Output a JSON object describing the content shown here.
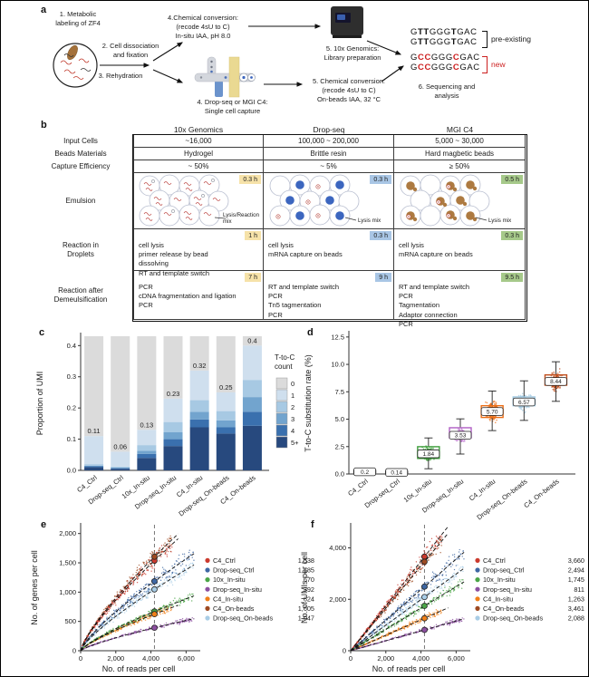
{
  "figure": {
    "panel_labels": {
      "a": "a",
      "b": "b",
      "c": "c",
      "d": "d",
      "e": "e",
      "f": "f"
    }
  },
  "panel_a": {
    "step1_lines": [
      "1. Metabolic",
      "labeling of ZF4"
    ],
    "step2_lines": [
      "2. Cell dissociation",
      "and fixation"
    ],
    "step3": "3. Rehydration",
    "step4_top_lines": [
      "4.Chemical conversion:",
      "(recode 4sU to C)",
      "In-situ IAA, pH 8.0"
    ],
    "step5_top_lines": [
      "5. 10x Genomics:",
      "Library preparation"
    ],
    "step4_bottom_lines": [
      "4. Drop-seq or MGI C4:",
      "Single cell capture"
    ],
    "step5_bottom_lines": [
      "5. Chemical conversion:",
      "(recode 4sU to C)",
      "On-beads IAA, 32 °C"
    ],
    "step6_lines": [
      "6. Sequencing and",
      "analysis"
    ],
    "seq_preexisting": {
      "segments": [
        {
          "text": "G",
          "bold": false,
          "color": "#111111"
        },
        {
          "text": "TT",
          "bold": true,
          "color": "#111111"
        },
        {
          "text": "GGG",
          "bold": false,
          "color": "#111111"
        },
        {
          "text": "T",
          "bold": true,
          "color": "#111111"
        },
        {
          "text": "GAC",
          "bold": false,
          "color": "#111111"
        }
      ],
      "label": "pre-existing",
      "label_color": "#111111"
    },
    "seq_new": {
      "segments": [
        {
          "text": "G",
          "bold": false,
          "color": "#111111"
        },
        {
          "text": "CC",
          "bold": true,
          "color": "#cc1f1f"
        },
        {
          "text": "GGG",
          "bold": false,
          "color": "#111111"
        },
        {
          "text": "C",
          "bold": true,
          "color": "#cc1f1f"
        },
        {
          "text": "GAC",
          "bold": false,
          "color": "#111111"
        }
      ],
      "label": "new",
      "label_color": "#cc1f1f"
    }
  },
  "panel_b": {
    "columns": [
      "10x Genomics",
      "Drop-seq",
      "MGI C4"
    ],
    "rows": [
      {
        "label": "Input Cells",
        "cells": [
          "~16,000",
          "100,000 ~ 200,000",
          "5,000 ~ 30,000"
        ]
      },
      {
        "label": "Beads Materials",
        "cells": [
          "Hydrogel",
          "Brittle resin",
          "Hard magbetic beads"
        ]
      },
      {
        "label": "Capture Efficiency",
        "cells": [
          "~ 50%",
          "~ 5%",
          "≥ 50%"
        ]
      }
    ],
    "emulsion": {
      "label": "Emulsion",
      "cols": [
        {
          "tag": "0.3 h",
          "tag_color": "#f6e2a9",
          "mix_label_lines": [
            "Lysis/Reaction",
            "mix"
          ],
          "bead": "none"
        },
        {
          "tag": "0.3 h",
          "tag_color": "#a9c6e5",
          "mix_label_lines": [
            "Lysis mix"
          ],
          "bead": "#3c66bf"
        },
        {
          "tag": "0.5 h",
          "tag_color": "#a6c98a",
          "mix_label_lines": [
            "Lysis mix"
          ],
          "bead": "#ad7a41"
        }
      ]
    },
    "reaction_droplets": {
      "label_lines": [
        "Reaction in",
        "Droplets"
      ],
      "cols": [
        {
          "tag": "1 h",
          "tag_color": "#f6e2a9",
          "lines": [
            "cell lysis",
            "primer release by bead dissolving",
            "RT and template switch"
          ]
        },
        {
          "tag": "0.3 h",
          "tag_color": "#a9c6e5",
          "lines": [
            "cell lysis",
            "mRNA capture on beads"
          ]
        },
        {
          "tag": "0.3 h",
          "tag_color": "#a6c98a",
          "lines": [
            "cell lysis",
            "mRNA capture on beads"
          ]
        }
      ]
    },
    "reaction_after": {
      "label_lines": [
        "Reaction after",
        "Demeulsification"
      ],
      "cols": [
        {
          "tag": "7 h",
          "tag_color": "#f6e2a9",
          "lines": [
            "PCR",
            "cDNA fragmentation and ligation",
            "PCR"
          ]
        },
        {
          "tag": "9 h",
          "tag_color": "#a9c6e5",
          "lines": [
            "RT and template switch",
            "PCR",
            "Tn5 tagmentation",
            "PCR"
          ]
        },
        {
          "tag": "9.5 h",
          "tag_color": "#a6c98a",
          "lines": [
            "RT and template switch",
            "PCR",
            "Tagmentation",
            "Adaptor connection",
            "PCR"
          ]
        }
      ]
    }
  },
  "chart_data": [
    {
      "id": "c",
      "type": "stacked_bar",
      "ylabel": "Proportion of UMI",
      "categories": [
        "C4_Ctrl",
        "Drop-seq_Ctrl",
        "10x_In-situ",
        "Drop-seq_In-situ",
        "C4_In-situ",
        "Drop-seq_On-beads",
        "C4_On-beads"
      ],
      "bar_totals": [
        0.11,
        0.06,
        0.13,
        0.23,
        0.32,
        0.25,
        0.4
      ],
      "bar_total_labels": [
        "0.11",
        "0.06",
        "0.13",
        "0.23",
        "0.32",
        "0.25",
        "0.4"
      ],
      "bar_top": 0.43,
      "yticks": [
        0,
        0.1,
        0.2,
        0.3,
        0.4
      ],
      "ytick_labels": [
        "0.0",
        "0.1",
        "0.2",
        "0.3",
        "0.4"
      ],
      "zero_color": "#dbdbdb",
      "series": [
        {
          "name": "5+",
          "color": "#27497e",
          "values": [
            0.01,
            0.005,
            0.04,
            0.078,
            0.138,
            0.118,
            0.143
          ]
        },
        {
          "name": "4",
          "color": "#3a70ae",
          "values": [
            0.003,
            0.002,
            0.013,
            0.022,
            0.025,
            0.02,
            0.045
          ]
        },
        {
          "name": "3",
          "color": "#72a4ce",
          "values": [
            0.002,
            0.002,
            0.01,
            0.022,
            0.025,
            0.022,
            0.047
          ]
        },
        {
          "name": "2",
          "color": "#a7c9e3",
          "values": [
            0.005,
            0.003,
            0.018,
            0.033,
            0.037,
            0.03,
            0.055
          ]
        },
        {
          "name": "1",
          "color": "#cfdfee",
          "values": [
            0.09,
            0.048,
            0.049,
            0.075,
            0.095,
            0.06,
            0.11
          ]
        }
      ],
      "legend": {
        "title_lines": [
          "T-to-C",
          "count"
        ],
        "entries": [
          {
            "label": "0",
            "color": "#dbdbdb"
          },
          {
            "label": "1",
            "color": "#cfdfee"
          },
          {
            "label": "2",
            "color": "#a7c9e3"
          },
          {
            "label": "3",
            "color": "#72a4ce"
          },
          {
            "label": "4",
            "color": "#3a70ae"
          },
          {
            "label": "5+",
            "color": "#27497e"
          }
        ]
      }
    },
    {
      "id": "d",
      "type": "box_jitter",
      "ylabel": "T-to-C substitution rate (%)",
      "ylim": [
        0,
        12.9
      ],
      "yticks": [
        0,
        2.5,
        5,
        7.5,
        10,
        12.5
      ],
      "ytick_labels": [
        "0.0",
        "2.5",
        "5.0",
        "7.5",
        "10.0",
        "12.5"
      ],
      "boxes": [
        {
          "category": "C4_Ctrl",
          "median_label": "0.2",
          "median": 0.2,
          "q1": 0.12,
          "q3": 0.32,
          "lo": 0.04,
          "hi": 0.5,
          "spread": 0.1,
          "n": 60,
          "color": "#4d4d4d"
        },
        {
          "category": "Drop-seq_Ctrl",
          "median_label": "0.14",
          "median": 0.14,
          "q1": 0.08,
          "q3": 0.24,
          "lo": 0.03,
          "hi": 0.4,
          "spread": 0.08,
          "n": 60,
          "color": "#4d4d4d"
        },
        {
          "category": "10x_In-situ",
          "median_label": "1.84",
          "median": 1.84,
          "q1": 1.42,
          "q3": 2.49,
          "lo": 0.48,
          "hi": 3.29,
          "spread": 0.55,
          "n": 220,
          "color": "#3f9e3c"
        },
        {
          "category": "Drop-seq_In-situ",
          "median_label": "3.53",
          "median": 3.53,
          "q1": 3.29,
          "q3": 4.22,
          "lo": 1.82,
          "hi": 5.03,
          "spread": 0.6,
          "n": 130,
          "color": "#b05fc4"
        },
        {
          "category": "C4_In-situ",
          "median_label": "5.70",
          "median": 5.7,
          "q1": 5.16,
          "q3": 6.23,
          "lo": 3.96,
          "hi": 7.57,
          "spread": 0.8,
          "n": 260,
          "color": "#ec6e16"
        },
        {
          "category": "Drop-seq_On-beads",
          "median_label": "6.57",
          "median": 6.57,
          "q1": 6.23,
          "q3": 7.03,
          "lo": 4.89,
          "hi": 8.5,
          "spread": 0.75,
          "n": 140,
          "color": "#9ec7e0"
        },
        {
          "category": "C4_On-beads",
          "median_label": "8.44",
          "median": 8.44,
          "q1": 8.1,
          "q3": 9.04,
          "lo": 6.63,
          "hi": 10.24,
          "spread": 0.85,
          "n": 220,
          "color": "#c14f1d"
        }
      ]
    },
    {
      "id": "e",
      "type": "scatter_fit",
      "xlabel": "No. of reads per cell",
      "ylabel": "No. of genes per cell",
      "xlim": [
        0,
        6600
      ],
      "ylim": [
        0,
        2150
      ],
      "xticks": [
        0,
        2000,
        4000,
        6000
      ],
      "xtick_labels": [
        "0",
        "2,000",
        "4,000",
        "6,000"
      ],
      "yticks": [
        0,
        500,
        1000,
        1500,
        2000
      ],
      "ytick_labels": [
        "0",
        "500",
        "1,000",
        "1,500",
        "2,000"
      ],
      "marker_x": 4200,
      "vline_x": 4200,
      "exponent": 0.78,
      "series": [
        {
          "name": "C4_Ctrl",
          "color": "#cb3a2e",
          "value": 1538,
          "value_label": "1,538"
        },
        {
          "name": "Drop-seq_Ctrl",
          "color": "#3e67a3",
          "value": 1185,
          "value_label": "1,185"
        },
        {
          "name": "10x_In-situ",
          "color": "#4aa547",
          "value": 670,
          "value_label": "670"
        },
        {
          "name": "Drop-seq_In-situ",
          "color": "#8c4fa0",
          "value": 392,
          "value_label": "392"
        },
        {
          "name": "C4_In-situ",
          "color": "#f08019",
          "value": 624,
          "value_label": "624"
        },
        {
          "name": "C4_On-beads",
          "color": "#9e4a21",
          "value": 1605,
          "value_label": "1,605"
        },
        {
          "name": "Drop-seq_On-beads",
          "color": "#a9cde6",
          "value": 1047,
          "value_label": "1,047"
        }
      ]
    },
    {
      "id": "f",
      "type": "scatter_fit",
      "xlabel": "No. of reads per cell",
      "ylabel": "No. of UMIs per cell",
      "xlim": [
        0,
        6600
      ],
      "ylim": [
        0,
        4900
      ],
      "xticks": [
        0,
        2000,
        4000,
        6000
      ],
      "xtick_labels": [
        "0",
        "2,000",
        "4,000",
        "6,000"
      ],
      "yticks": [
        0,
        2000,
        4000
      ],
      "ytick_labels": [
        "0",
        "2,000",
        "4,000"
      ],
      "marker_x": 4200,
      "vline_x": 4200,
      "exponent": 1.0,
      "series": [
        {
          "name": "C4_Ctrl",
          "color": "#cb3a2e",
          "value": 3660,
          "value_label": "3,660"
        },
        {
          "name": "Drop-seq_Ctrl",
          "color": "#3e67a3",
          "value": 2494,
          "value_label": "2,494"
        },
        {
          "name": "10x_In-situ",
          "color": "#4aa547",
          "value": 1745,
          "value_label": "1,745"
        },
        {
          "name": "Drop-seq_In-situ",
          "color": "#8c4fa0",
          "value": 811,
          "value_label": "811"
        },
        {
          "name": "C4_In-situ",
          "color": "#f08019",
          "value": 1263,
          "value_label": "1,263"
        },
        {
          "name": "C4_On-beads",
          "color": "#9e4a21",
          "value": 3461,
          "value_label": "3,461"
        },
        {
          "name": "Drop-seq_On-beads",
          "color": "#a9cde6",
          "value": 2088,
          "value_label": "2,088"
        }
      ]
    }
  ]
}
